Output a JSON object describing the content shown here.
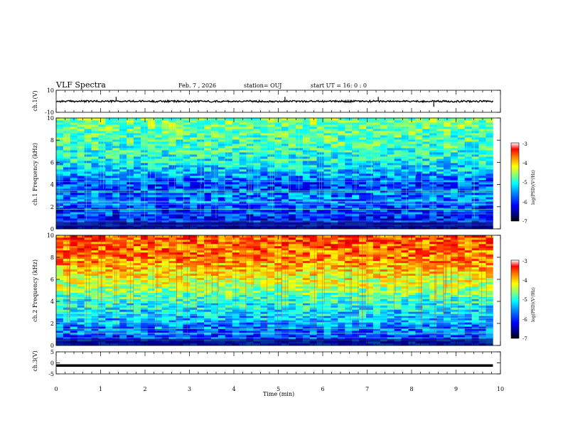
{
  "header": {
    "title": "VLF Spectra",
    "date": "Feb. 7 , 2026",
    "station": "station= OUJ",
    "start": "start UT =  16: 0 : 0"
  },
  "colors": {
    "cmap": [
      "#00007f",
      "#0000ff",
      "#007fff",
      "#00ffff",
      "#7fff7f",
      "#ffff00",
      "#ff7f00",
      "#ff0000",
      "#7f0000"
    ],
    "bar_colors": [
      "#000000",
      "#00007f",
      "#0000ff",
      "#007fff",
      "#00ffff",
      "#7fff7f",
      "#ffff00",
      "#ff7f00",
      "#ff0000",
      "#ffffff"
    ]
  },
  "chart_data": [
    {
      "type": "line",
      "name": "ch1-waveform",
      "ylabel": "ch.1(V)",
      "ylim": [
        -10,
        10
      ],
      "ytick_labels": [
        "10",
        "-10"
      ],
      "baseline": 0,
      "spikes": [
        {
          "t": 1.35,
          "v": 4
        },
        {
          "t": 5.15,
          "v": 4
        },
        {
          "t": 7.25,
          "v": 4
        },
        {
          "t": 8.5,
          "v": -5
        }
      ]
    },
    {
      "type": "heatmap",
      "name": "ch1-spectrogram",
      "ylabel": "ch.1\nFrequency  (kHz)",
      "ylim": [
        0,
        10
      ],
      "ytick_labels": [
        "0",
        "2",
        "4",
        "6",
        "8",
        "10"
      ],
      "colorbar_label": "log(PSD)(V²/Hz)",
      "colorbar_ticks": [
        "-3",
        "-4",
        "-5",
        "-6",
        "-7"
      ],
      "clim": [
        -7,
        -3
      ],
      "profile": [
        {
          "f": 0.0,
          "v": -6.6
        },
        {
          "f": 1.0,
          "v": -6.4
        },
        {
          "f": 2.0,
          "v": -6.2
        },
        {
          "f": 3.0,
          "v": -6.0
        },
        {
          "f": 4.0,
          "v": -6.3
        },
        {
          "f": 5.0,
          "v": -5.8
        },
        {
          "f": 6.0,
          "v": -5.5
        },
        {
          "f": 7.0,
          "v": -5.3
        },
        {
          "f": 8.0,
          "v": -5.2
        },
        {
          "f": 9.0,
          "v": -5.1
        },
        {
          "f": 10.0,
          "v": -5.0
        }
      ]
    },
    {
      "type": "heatmap",
      "name": "ch2-spectrogram",
      "ylabel": "ch.2\nFrequency  (kHz)",
      "ylim": [
        0,
        10
      ],
      "ytick_labels": [
        "0",
        "2",
        "4",
        "6",
        "8",
        "10"
      ],
      "colorbar_label": "log(PSD)(V²/Hz)",
      "colorbar_ticks": [
        "-3",
        "-4",
        "-5",
        "-6",
        "-7"
      ],
      "clim": [
        -7,
        -3
      ],
      "profile": [
        {
          "f": 0.0,
          "v": -6.4
        },
        {
          "f": 1.0,
          "v": -6.2
        },
        {
          "f": 2.0,
          "v": -5.9
        },
        {
          "f": 3.0,
          "v": -5.6
        },
        {
          "f": 4.0,
          "v": -5.4
        },
        {
          "f": 5.0,
          "v": -4.9
        },
        {
          "f": 6.0,
          "v": -4.6
        },
        {
          "f": 7.0,
          "v": -4.3
        },
        {
          "f": 8.0,
          "v": -4.0
        },
        {
          "f": 9.0,
          "v": -3.9
        },
        {
          "f": 10.0,
          "v": -3.8
        }
      ]
    },
    {
      "type": "line",
      "name": "ch3-waveform",
      "ylabel": "ch.3(V)",
      "ylim": [
        -5,
        5
      ],
      "ytick_labels": [
        "5",
        "0",
        "-5"
      ],
      "baseline": -1.2
    }
  ],
  "xaxis": {
    "label": "Time  (min)",
    "xlim": [
      0,
      10
    ],
    "tick_labels": [
      "0",
      "1",
      "2",
      "3",
      "4",
      "5",
      "6",
      "7",
      "8",
      "9",
      "10"
    ],
    "data_end": 9.83
  }
}
